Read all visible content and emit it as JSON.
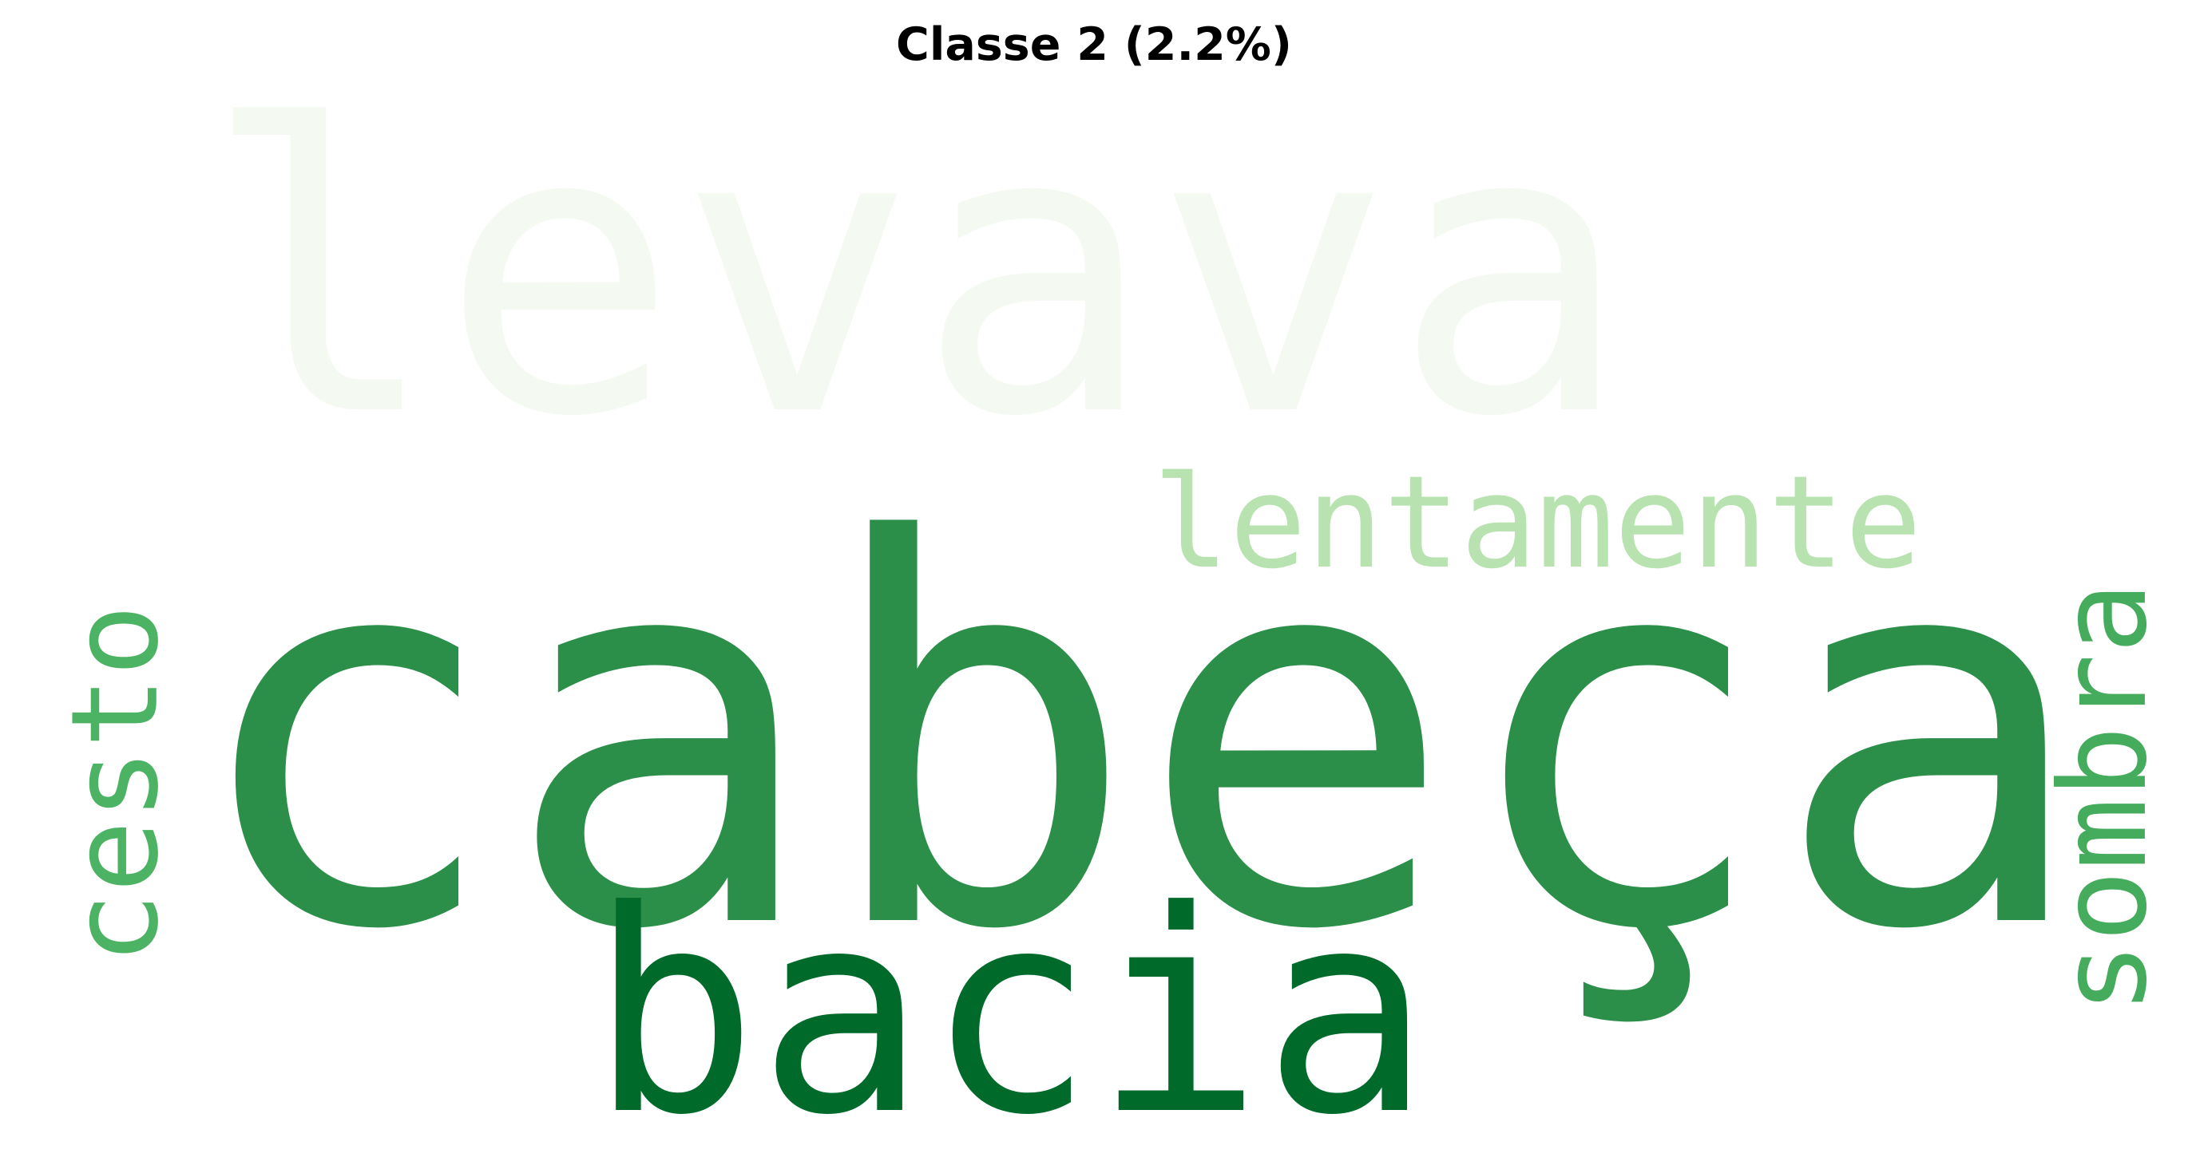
{
  "title": "Classe 2 (2.2%)",
  "palette": "Greens",
  "background_color": "#ffffff",
  "words": [
    {
      "text": "levava",
      "color": "#f4faf1",
      "orientation": "horizontal"
    },
    {
      "text": "cabeça",
      "color": "#2b8f4a",
      "orientation": "horizontal"
    },
    {
      "text": "bacia",
      "color": "#006a2b",
      "orientation": "horizontal"
    },
    {
      "text": "lentamente",
      "color": "#b8e2b0",
      "orientation": "horizontal"
    },
    {
      "text": "cesto",
      "color": "#4db364",
      "orientation": "vertical"
    },
    {
      "text": "sombra",
      "color": "#45ac5d",
      "orientation": "vertical"
    }
  ]
}
